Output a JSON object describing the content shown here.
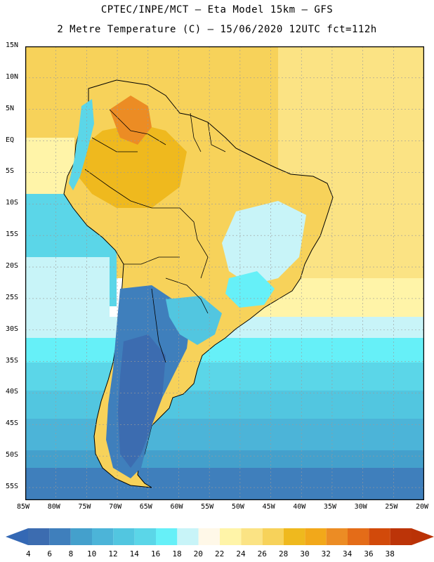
{
  "header": {
    "line1": "CPTEC/INPE/MCT –  Eta Model 15km – GFS",
    "line2": "2 Metre Temperature (C) – 15/06/2020 12UTC fct=112h"
  },
  "map": {
    "latitude_labels": [
      "15N",
      "10N",
      "5N",
      "EQ",
      "5S",
      "10S",
      "15S",
      "20S",
      "25S",
      "30S",
      "35S",
      "40S",
      "45S",
      "50S",
      "55S"
    ],
    "longitude_labels": [
      "85W",
      "80W",
      "75W",
      "70W",
      "65W",
      "60W",
      "55W",
      "50W",
      "45W",
      "40W",
      "35W",
      "30W",
      "25W",
      "20W"
    ],
    "lat_range": [
      15,
      -57
    ],
    "lon_range": [
      -85,
      -20
    ]
  },
  "colorbar": {
    "levels": [
      "4",
      "6",
      "8",
      "10",
      "12",
      "14",
      "16",
      "18",
      "20",
      "22",
      "24",
      "26",
      "28",
      "30",
      "32",
      "34",
      "36",
      "38"
    ],
    "colors": [
      "#3c6cb0",
      "#3f7fbc",
      "#44a0cc",
      "#4cb4d8",
      "#52c6e0",
      "#5bd6e8",
      "#66f0f8",
      "#c8f4f8",
      "#fff8e8",
      "#fff4a8",
      "#fbe384",
      "#f7d25a",
      "#efb91e",
      "#f2a81a",
      "#ec8c24",
      "#e46c18",
      "#d24a0a",
      "#bc3408"
    ],
    "under_color": "#3468b4",
    "over_color": "#ba3206"
  }
}
